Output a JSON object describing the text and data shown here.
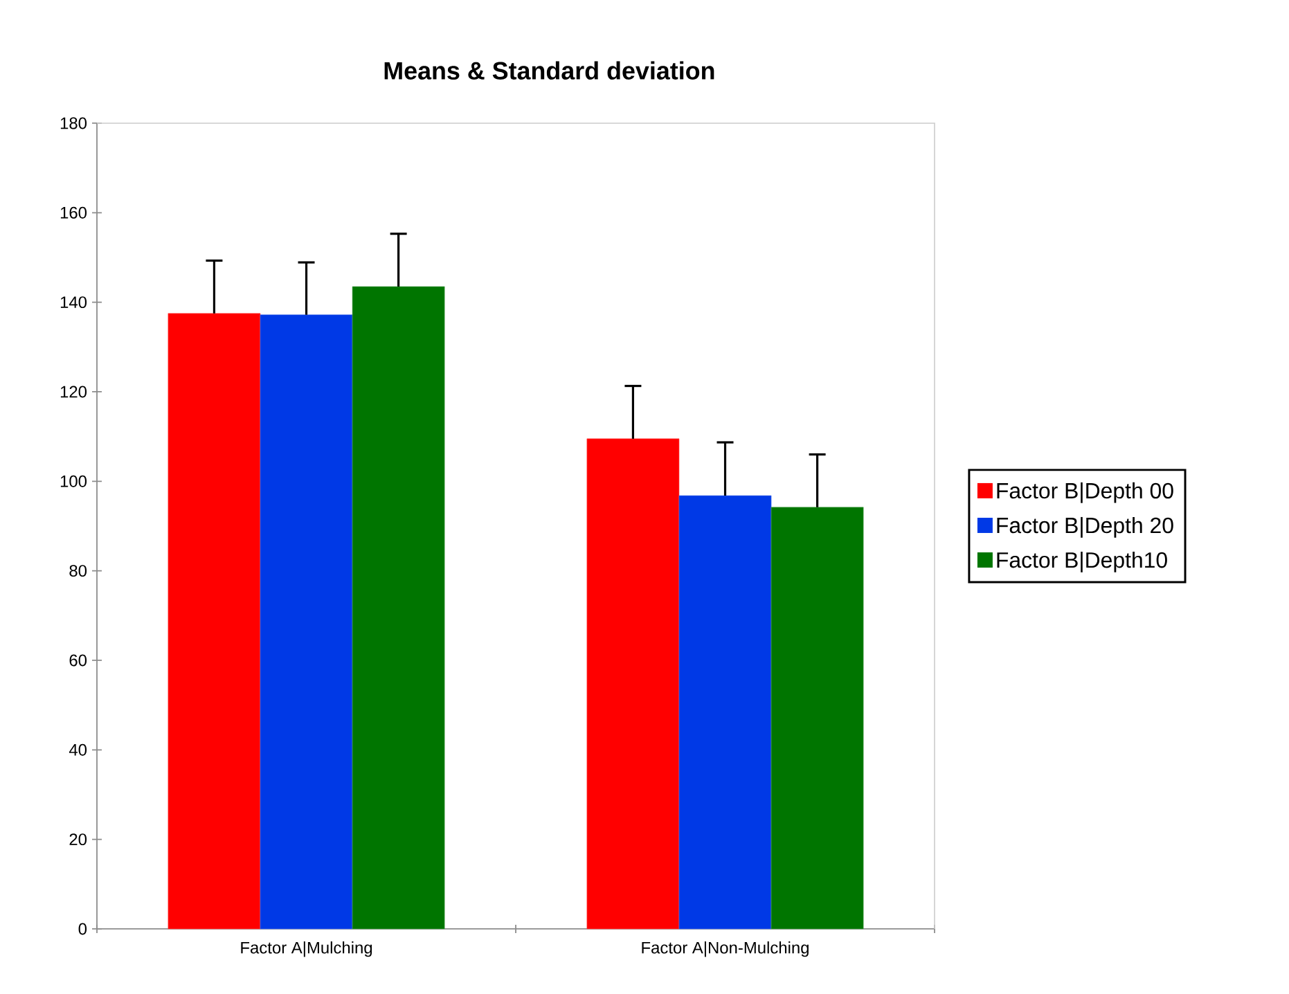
{
  "chart_data": {
    "type": "bar",
    "title": "Means & Standard deviation",
    "categories": [
      "Factor A|Mulching",
      "Factor A|Non-Mulching"
    ],
    "series": [
      {
        "name": "Factor B|Depth 00",
        "color": "#ff0000",
        "values": [
          137.5,
          109.5
        ],
        "errors": [
          [
            137.5,
            149.3
          ],
          [
            109.5,
            121.3
          ]
        ]
      },
      {
        "name": "Factor B|Depth 20",
        "color": "#0039e6",
        "values": [
          137.2,
          96.8
        ],
        "errors": [
          [
            137.2,
            148.9
          ],
          [
            96.8,
            108.7
          ]
        ]
      },
      {
        "name": "Factor B|Depth10",
        "color": "#007500",
        "values": [
          143.5,
          94.2
        ],
        "errors": [
          [
            143.5,
            155.3
          ],
          [
            94.2,
            106.0
          ]
        ]
      }
    ],
    "ylim": [
      0,
      180
    ],
    "yticks": [
      0,
      20,
      40,
      60,
      80,
      100,
      120,
      140,
      160,
      180
    ],
    "legend": "right"
  }
}
